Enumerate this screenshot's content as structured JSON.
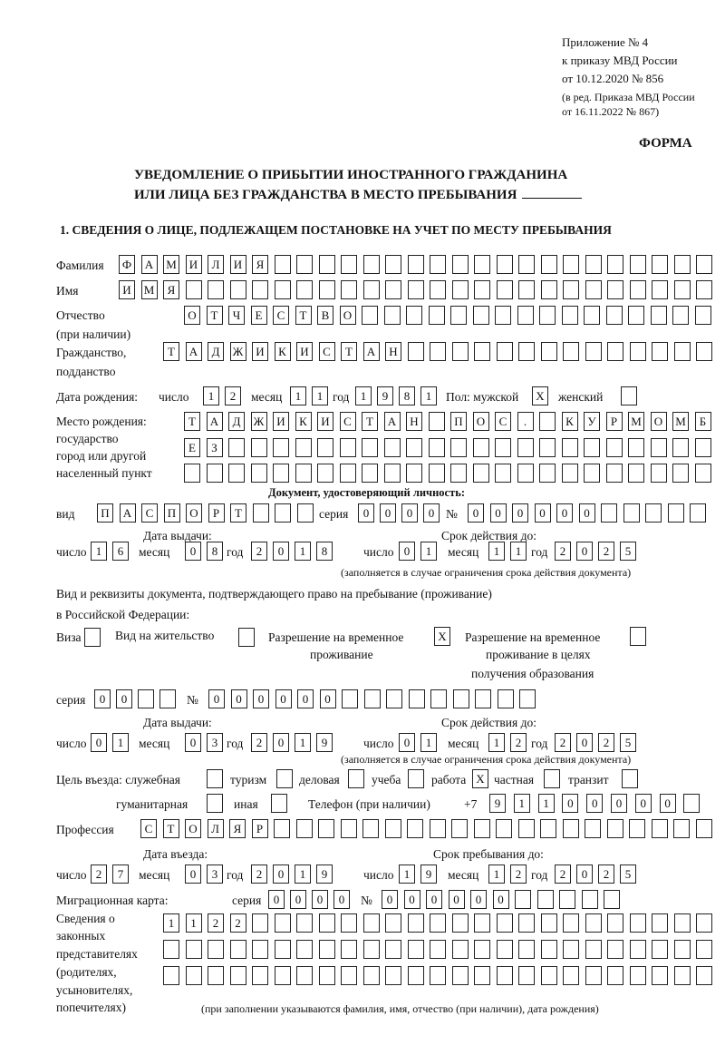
{
  "header": {
    "line1": "Приложение № 4",
    "line2": "к приказу МВД России",
    "line3": "от 10.12.2020 № 856",
    "line4": "(в ред. Приказа МВД России",
    "line5": "от 16.11.2022 № 867)",
    "form_label": "ФОРМА"
  },
  "title": {
    "line1": "УВЕДОМЛЕНИЕ О ПРИБЫТИИ ИНОСТРАННОГО ГРАЖДАНИНА",
    "line2": "ИЛИ ЛИЦА БЕЗ ГРАЖДАНСТВА В МЕСТО ПРЕБЫВАНИЯ"
  },
  "section1": "1. СВЕДЕНИЯ О ЛИЦЕ, ПОДЛЕЖАЩЕМ ПОСТАНОВКЕ НА УЧЕТ ПО МЕСТУ ПРЕБЫВАНИЯ",
  "person": {
    "surname_label": "Фамилия",
    "surname": "ФАМИЛИЯ",
    "name_label": "Имя",
    "name": "ИМЯ",
    "patronymic_label": "Отчество",
    "patronymic_label2": "(при наличии)",
    "patronymic": "ОТЧЕСТВО",
    "citizenship_label": "Гражданство,",
    "citizenship_label2": "подданство",
    "citizenship": "ТАДЖИКИСТАН",
    "birth": {
      "label": "Дата рождения:",
      "day_label": "число",
      "day": "12",
      "month_label": "месяц",
      "month": "11",
      "year_label": "год",
      "year": "1981"
    },
    "sex_label": "Пол: мужской",
    "male": "X",
    "female_label": "женский",
    "female": "",
    "birthplace_label1": "Место рождения:",
    "birthplace_label2": "государство",
    "birthplace_label3": "город или другой",
    "birthplace_label4": "населенный пункт",
    "birthplace_row1": "ТАДЖИКИСТАН ПОС. КУРМОМБ",
    "birthplace_row2": "ЕЗ",
    "birthplace_row3": ""
  },
  "id_doc": {
    "heading": "Документ, удостоверяющий личность:",
    "type_label": "вид",
    "type": "ПАСПОРТ",
    "series_label": "серия",
    "series": "0000",
    "number_label": "№",
    "number": "000000",
    "issue_label": "Дата выдачи:",
    "valid_label": "Срок действия до:",
    "day_label": "число",
    "month_label": "месяц",
    "year_label": "год",
    "issue_day": "16",
    "issue_month": "08",
    "issue_year": "2018",
    "valid_day": "01",
    "valid_month": "11",
    "valid_year": "2025",
    "note": "(заполняется в случае ограничения срока действия документа)"
  },
  "stay_doc": {
    "heading1": "Вид и реквизиты документа, подтверждающего право на пребывание (проживание)",
    "heading2": "в Российской Федерации:",
    "visa_label": "Виза",
    "visa": "",
    "residence_label": "Вид на жительство",
    "residence": "",
    "trp_label1": "Разрешение на временное",
    "trp_label2": "проживание",
    "trp": "X",
    "trp_edu_label1": "Разрешение на временное",
    "trp_edu_label2": "проживание в целях",
    "trp_edu_label3": "получения образования",
    "trp_edu": "",
    "series_label": "серия",
    "series": "00",
    "number_label": "№",
    "number": "000000",
    "issue_label": "Дата выдачи:",
    "valid_label": "Срок действия до:",
    "day_label": "число",
    "month_label": "месяц",
    "year_label": "год",
    "issue_day": "01",
    "issue_month": "03",
    "issue_year": "2019",
    "valid_day": "01",
    "valid_month": "12",
    "valid_year": "2025",
    "note": "(заполняется в случае ограничения срока действия документа)"
  },
  "purpose": {
    "label": "Цель въезда: служебная",
    "official": "",
    "tourism_label": "туризм",
    "tourism": "",
    "business_label": "деловая",
    "business": "",
    "study_label": "учеба",
    "study": "",
    "work_label": "работа",
    "work": "X",
    "private_label": "частная",
    "private": "",
    "transit_label": "транзит",
    "transit": "",
    "humanitarian_label": "гуманитарная",
    "humanitarian": "",
    "other_label": "иная",
    "other": ""
  },
  "phone": {
    "label": "Телефон (при наличии)",
    "prefix": "+7",
    "value": "91100000"
  },
  "profession": {
    "label": "Профессия",
    "value": "СТОЛЯР"
  },
  "entry": {
    "entry_label": "Дата въезда:",
    "stay_label": "Срок пребывания до:",
    "day_label": "число",
    "month_label": "месяц",
    "year_label": "год",
    "entry_day": "27",
    "entry_month": "03",
    "entry_year": "2019",
    "stay_day": "19",
    "stay_month": "12",
    "stay_year": "2025"
  },
  "migration_card": {
    "label": "Миграционная карта:",
    "series_label": "серия",
    "series": "0000",
    "number_label": "№",
    "number": "000000"
  },
  "representatives": {
    "label1": "Сведения о",
    "label2": "законных",
    "label3": "представителях",
    "label4": "(родителях,",
    "label5": "усыновителях,",
    "label6": "попечителях)",
    "row1": "1122",
    "row2": "",
    "row3": "",
    "note": "(при заполнении указываются фамилия, имя, отчество (при наличии), дата рождения)"
  }
}
